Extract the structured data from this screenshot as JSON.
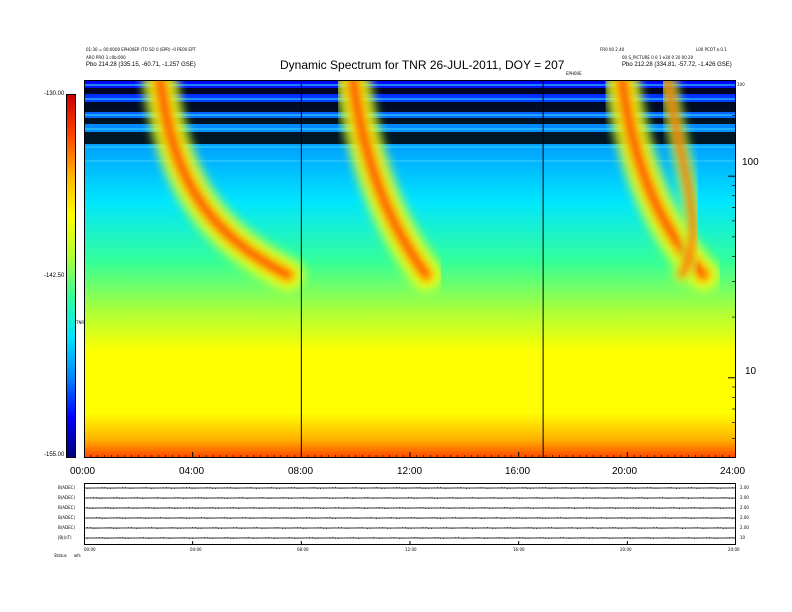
{
  "header": {
    "title": "Dynamic Spectrum for TNR 26-JUL-2011, DOY = 207",
    "left_line1": "01:30 = 00:0000 EPH00EP (TO SO 0 (EPR) -0 PE00 EPT",
    "left_line2": "ARO PRO 3 c0b:000",
    "left_line3": "Pbo    214.28 (335.15, -60.71, -1.257 GSE)",
    "right_line1": "FR0 00 2.40",
    "right_line2": "L00 PCOT e.0.1",
    "right_line3": "00 S_PICTURE 0 0 1 e30 0 20 00 20",
    "right_line4": "Pbo    212.28 (334.81, -57.72, -1.426 GSE)",
    "marker_label": "EPH00E",
    "corner_mark": "100"
  },
  "colorbar": {
    "min_label": "-155.00",
    "mid_label": "-142.50",
    "max_label": "-130.00",
    "unit_label": "TNR",
    "colors": [
      "#00007a",
      "#0000ff",
      "#0088ff",
      "#00e5ff",
      "#33ff99",
      "#b3ff33",
      "#ffff00",
      "#ffb300",
      "#ff4400",
      "#cc0000"
    ]
  },
  "chart_data": {
    "type": "heatmap",
    "title": "Dynamic Spectrum for TNR 26-JUL-2011, DOY = 207",
    "x_range": [
      "00:00",
      "24:00"
    ],
    "x_ticks": [
      "00:00",
      "04:00",
      "08:00",
      "12:00",
      "16:00",
      "20:00",
      "24:00"
    ],
    "y_scale": "log",
    "y_ticks": [
      "10",
      "100"
    ],
    "color_range_db": [
      -155.0,
      -130.0
    ],
    "color_ticks": [
      "-155.00",
      "-142.50",
      "-130.00"
    ],
    "data_gap_lines_hours": [
      8.0,
      16.9
    ],
    "type_iii_bursts": [
      {
        "start_hour": 2.8,
        "end_hour": 7.5,
        "peak": "strong"
      },
      {
        "start_hour": 9.9,
        "end_hour": 12.6,
        "peak": "strong"
      },
      {
        "start_hour": 19.8,
        "end_hour": 22.8,
        "peak": "strong"
      },
      {
        "start_hour": 21.5,
        "end_hour": 22.0,
        "peak": "moderate"
      }
    ]
  },
  "lower_panels": {
    "rows": [
      {
        "label": "B(ADEC)",
        "right": "2.00"
      },
      {
        "label": "B(ADEC)",
        "right": "2.00"
      },
      {
        "label": "B(ADEC)",
        "right": "2.00"
      },
      {
        "label": "B(ADEC)",
        "right": "2.00"
      },
      {
        "label": "B(ADEC)",
        "right": "2.00"
      },
      {
        "label": "|B|(nT)",
        "right": "10"
      }
    ],
    "x_ticks": [
      "00:00",
      "04:00",
      "08:00",
      "12:00",
      "16:00",
      "20:00",
      "24:00"
    ],
    "status_label": "Status",
    "status_value": "wfs"
  }
}
